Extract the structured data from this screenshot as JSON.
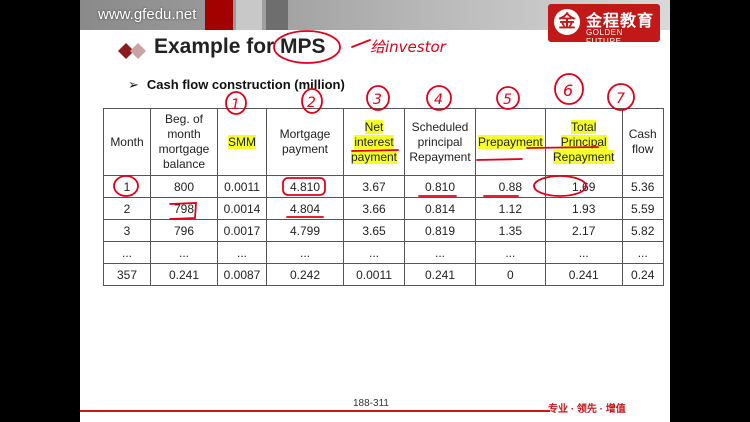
{
  "header": {
    "site_url": "www.gfedu.net",
    "logo": {
      "mark_icon": "gfedu-logo-icon",
      "cn": "金程教育",
      "en": "GOLDEN FUTURE"
    }
  },
  "slide": {
    "title": "Example for MPS",
    "subtitle": "Cash flow construction (million)",
    "page_number": "188-311",
    "slogan": "专业 · 领先 · 增值"
  },
  "handwriting": {
    "note": "给investor",
    "column_numbers": [
      "1",
      "2",
      "3",
      "4",
      "5",
      "6",
      "7"
    ]
  },
  "table": {
    "headers": [
      "Month",
      "Beg. of month mortgage balance",
      "SMM",
      "Mortgage payment",
      "Net interest payment",
      "Scheduled principal Repayment",
      "Prepayment",
      "Total Principal Repayment",
      "Cash flow"
    ],
    "rows": [
      [
        "1",
        "800",
        "0.0011",
        "4.810",
        "3.67",
        "0.810",
        "0.88",
        "1.69",
        "5.36"
      ],
      [
        "2",
        "798",
        "0.0014",
        "4.804",
        "3.66",
        "0.814",
        "1.12",
        "1.93",
        "5.59"
      ],
      [
        "3",
        "796",
        "0.0017",
        "4.799",
        "3.65",
        "0.819",
        "1.35",
        "2.17",
        "5.82"
      ],
      [
        "...",
        "...",
        "...",
        "...",
        "...",
        "...",
        "...",
        "...",
        "..."
      ],
      [
        "357",
        "0.241",
        "0.0087",
        "0.242",
        "0.0011",
        "0.241",
        "0",
        "0.241",
        "0.24"
      ]
    ]
  },
  "colors": {
    "brand_red": "#c21818",
    "highlight_yellow": "#f5ff2a",
    "ink_red": "#e0001a"
  }
}
